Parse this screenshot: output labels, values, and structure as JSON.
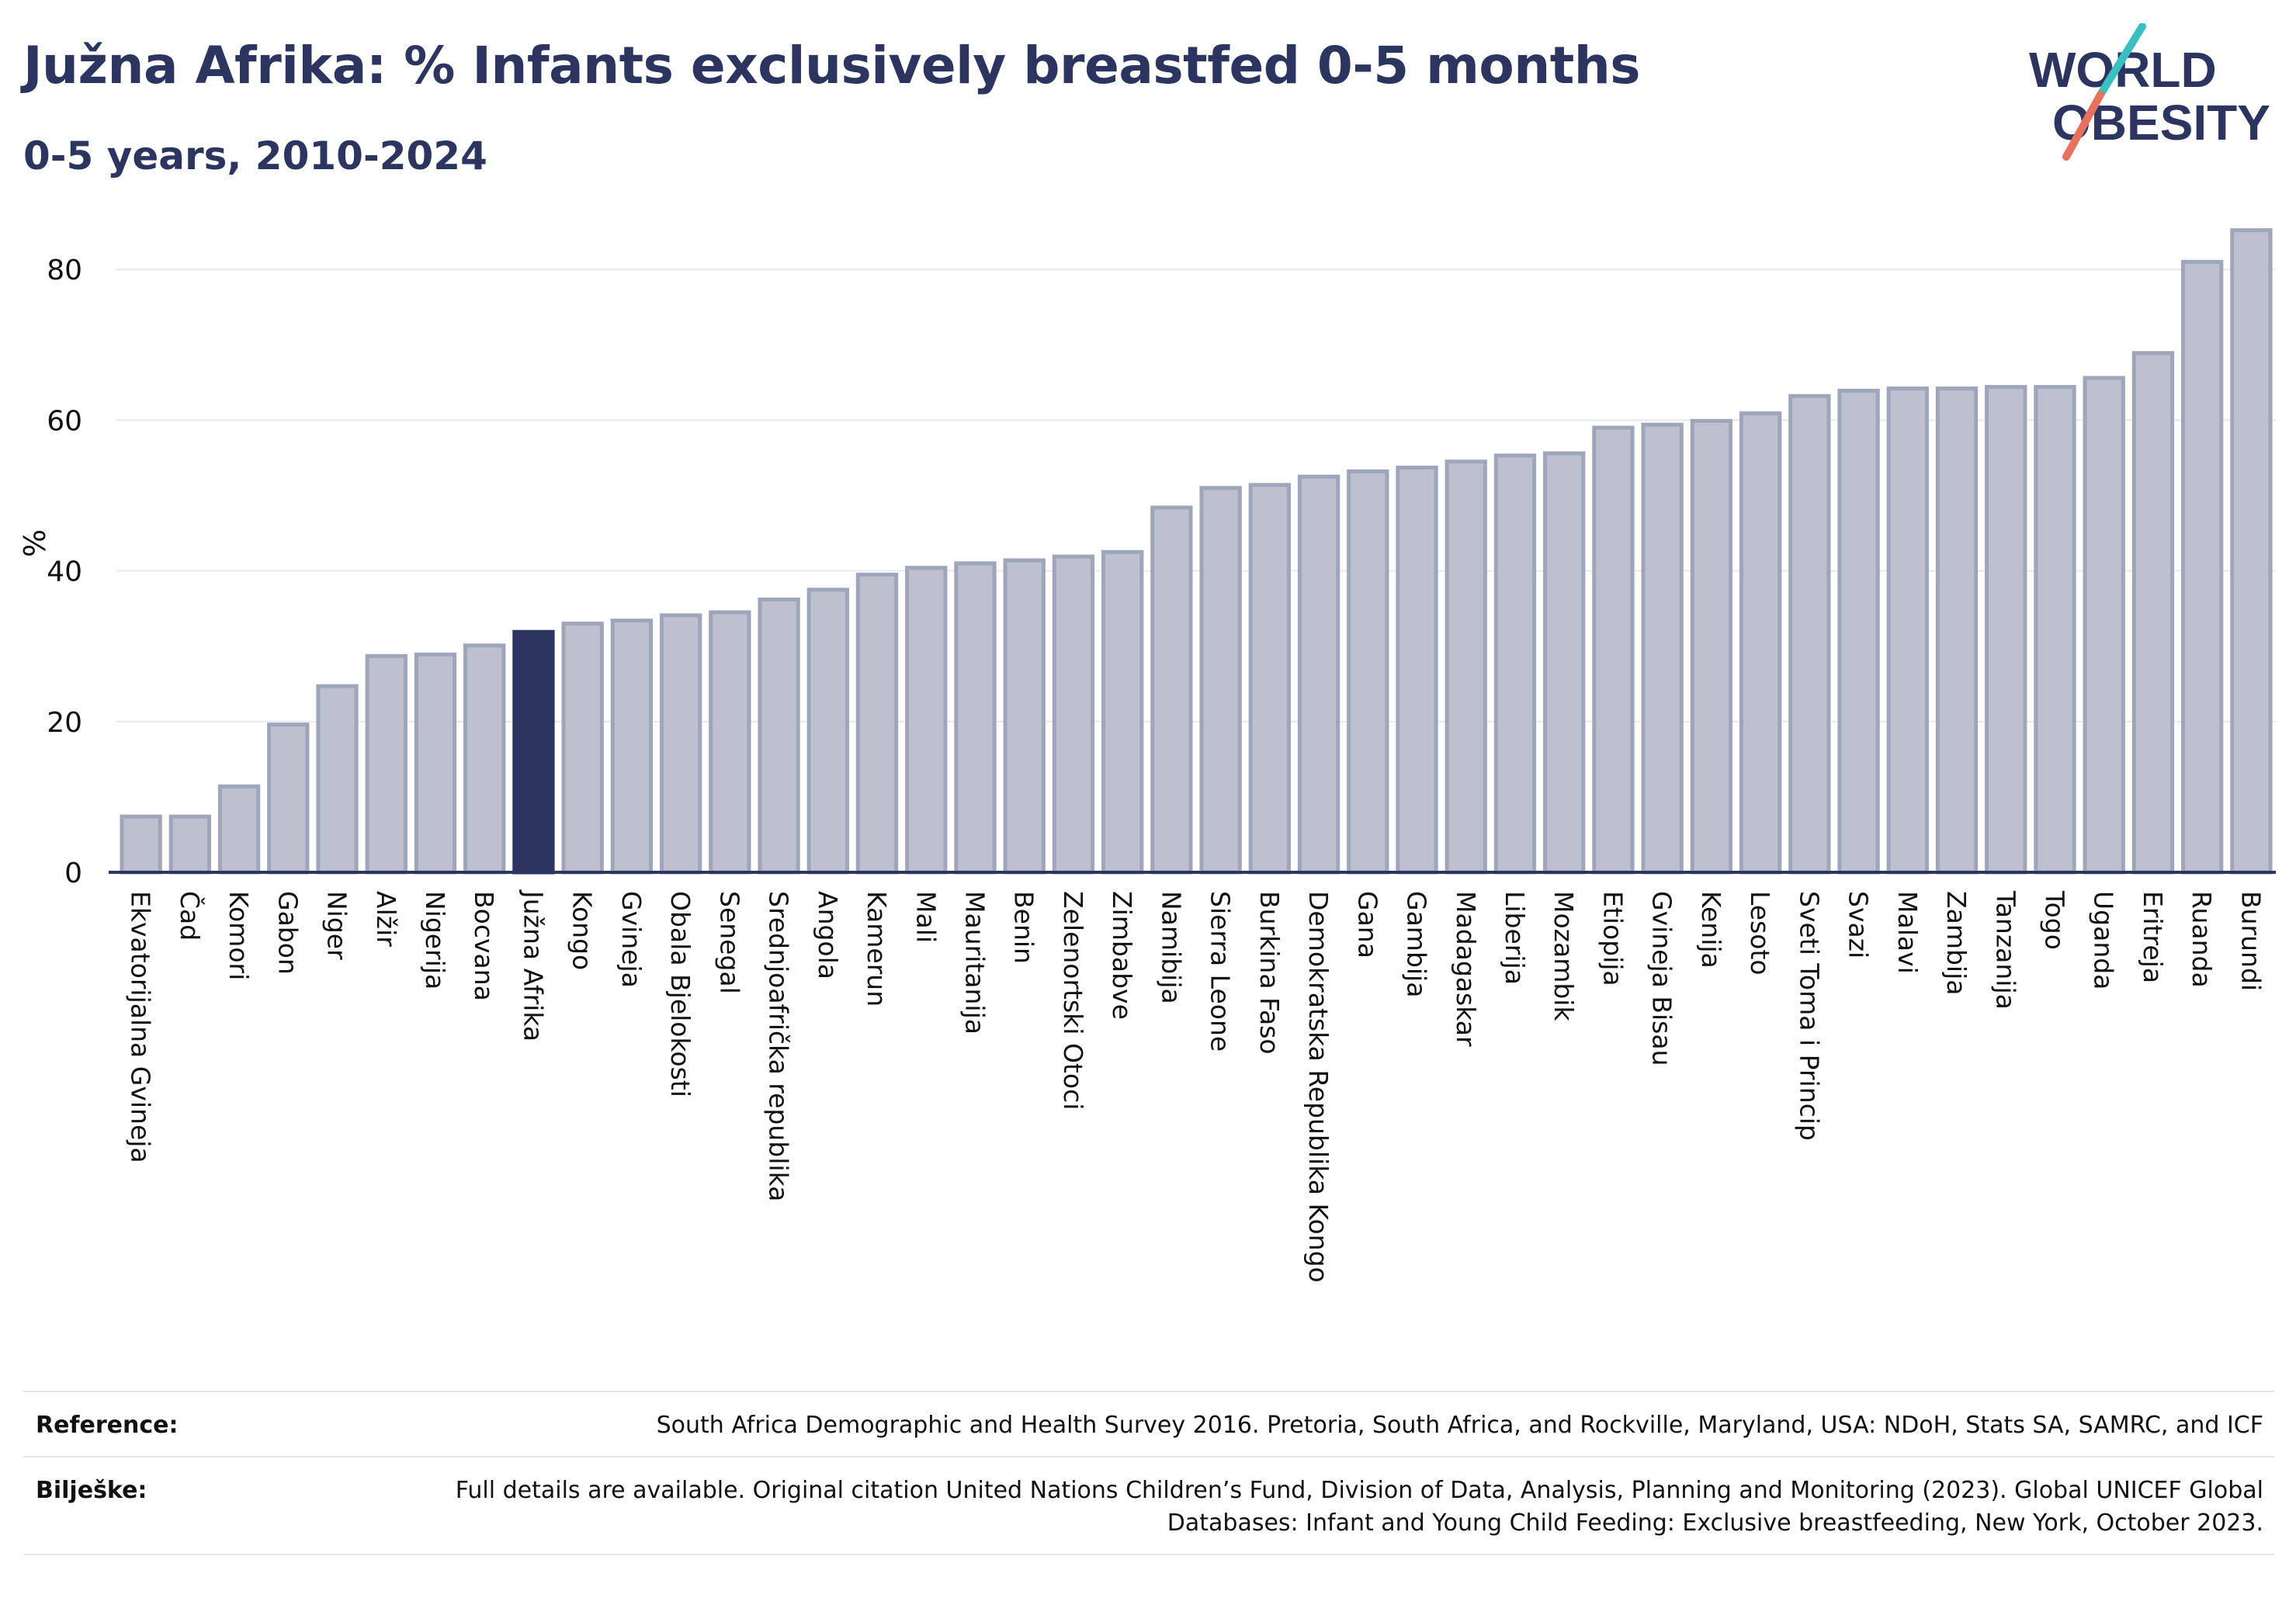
{
  "header": {
    "title": "Južna Afrika: % Infants exclusively breastfed 0-5 months",
    "subtitle": "0-5 years, 2010-2024"
  },
  "logo": {
    "line1": "WORLD",
    "line2": "OBESITY"
  },
  "colors": {
    "bar": "#bcc0cf",
    "bar_edge": "#9fa5ba",
    "highlight": "#2c3560",
    "text": "#2c3560",
    "grid": "#e8e8ec",
    "logo_teal": "#3cbfc0",
    "logo_coral": "#e8705e"
  },
  "chart_data": {
    "type": "bar",
    "ylabel": "%",
    "ylim": [
      0,
      90
    ],
    "yticks": [
      0,
      20,
      40,
      60,
      80
    ],
    "grid": true,
    "highlight": "Južna Afrika",
    "categories": [
      "Ekvatorijalna Gvineja",
      "Čad",
      "Komori",
      "Gabon",
      "Niger",
      "Alžir",
      "Nigerija",
      "Bocvana",
      "Južna Afrika",
      "Kongo",
      "Gvineja",
      "Obala Bjelokosti",
      "Senegal",
      "Srednjoafrička republika",
      "Angola",
      "Kamerun",
      "Mali",
      "Mauritanija",
      "Benin",
      "Zelenortski Otoci",
      "Zimbabve",
      "Namibija",
      "Sierra Leone",
      "Burkina Faso",
      "Demokratska Republika Kongo",
      "Gana",
      "Gambija",
      "Madagaskar",
      "Liberija",
      "Mozambik",
      "Etiopija",
      "Gvineja Bisau",
      "Kenija",
      "Lesoto",
      "Sveti Toma i Princip",
      "Svazi",
      "Malavi",
      "Zambija",
      "Tanzanija",
      "Togo",
      "Uganda",
      "Eritreja",
      "Ruanda",
      "Burundi"
    ],
    "values": [
      7.4,
      7.4,
      11.4,
      19.6,
      24.7,
      28.7,
      28.9,
      30.1,
      31.9,
      33.0,
      33.4,
      34.1,
      34.5,
      36.2,
      37.5,
      39.5,
      40.4,
      41.0,
      41.4,
      41.9,
      42.5,
      48.4,
      51.0,
      51.4,
      52.5,
      53.2,
      53.7,
      54.5,
      55.3,
      55.6,
      59.0,
      59.4,
      59.9,
      60.9,
      63.2,
      63.9,
      64.2,
      64.2,
      64.4,
      64.4,
      65.6,
      68.9,
      81.0,
      85.2
    ]
  },
  "footer": {
    "reference_label": "Reference:",
    "reference_text": "South Africa Demographic and Health Survey 2016. Pretoria, South Africa, and Rockville, Maryland, USA: NDoH, Stats SA, SAMRC, and ICF",
    "notes_label": "Bilješke:",
    "notes_text": "Full details are available. Original citation United Nations Children’s Fund, Division of Data, Analysis, Planning and Monitoring (2023). Global UNICEF Global Databases: Infant and Young Child Feeding: Exclusive breastfeeding, New York, October 2023."
  }
}
